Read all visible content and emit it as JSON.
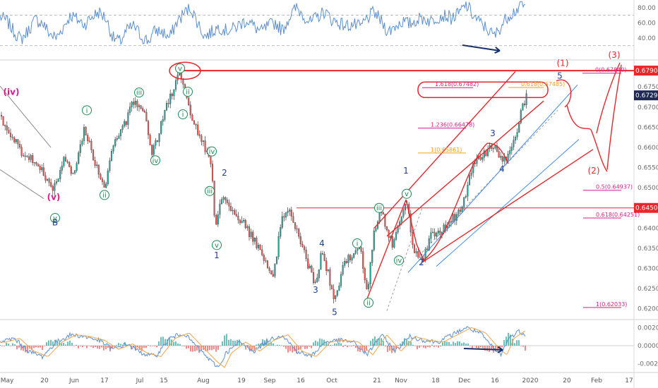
{
  "chart_data": {
    "type": "line",
    "colors": {
      "candle_up": "#26a69a",
      "candle_down": "#ef5350",
      "price_line": "#333333",
      "rsi": "#5b8fd1",
      "macd": "#5b8fd1",
      "signal": "#f0a44a",
      "annot_red": "#e8262b",
      "channel_blue": "#3f8ae8",
      "fib_magenta": "#d81b8f",
      "fib_orange": "#f39c12",
      "wave_green": "#1e8a55",
      "wave_navy": "#1c3f94",
      "arrow_navy": "#17326b",
      "pivot_box": "#1e2a55"
    },
    "x_axis": {
      "date_labels": [
        "May",
        "20",
        "Jun",
        "17",
        "Jul",
        "15",
        "Aug",
        "19",
        "Sep",
        "16",
        "Oct",
        "21",
        "Nov",
        "18",
        "Dec",
        "16",
        "2020",
        "20",
        "Feb",
        "17"
      ]
    },
    "price_axis": {
      "ticks": [
        "0.67500",
        "0.67000",
        "0.66500",
        "0.66000",
        "0.65500",
        "0.65000",
        "0.64000",
        "0.63500",
        "0.63000",
        "0.62500",
        "0.62000"
      ],
      "ylim": [
        0.6175,
        0.6815
      ],
      "highlights": [
        {
          "value": 0.67904,
          "label": "0.67904",
          "kind": "red"
        },
        {
          "value": 0.6729,
          "label": "0.67290",
          "kind": "navy"
        },
        {
          "value": 0.645,
          "label": "0.64500",
          "kind": "red"
        }
      ]
    },
    "rsi_panel": {
      "ticks": [
        "80.00",
        "60.00",
        "40.00"
      ],
      "ylim": [
        12,
        90
      ],
      "levels": [
        70,
        30
      ],
      "anchors": [
        [
          0,
          68
        ],
        [
          10,
          62
        ],
        [
          20,
          48
        ],
        [
          30,
          38
        ],
        [
          40,
          50
        ],
        [
          50,
          64
        ],
        [
          60,
          60
        ],
        [
          70,
          46
        ],
        [
          80,
          40
        ],
        [
          90,
          55
        ],
        [
          100,
          70
        ],
        [
          110,
          64
        ],
        [
          120,
          58
        ],
        [
          130,
          68
        ],
        [
          140,
          74
        ],
        [
          150,
          66
        ],
        [
          160,
          40
        ],
        [
          170,
          35
        ],
        [
          180,
          50
        ],
        [
          190,
          56
        ],
        [
          200,
          42
        ],
        [
          210,
          36
        ],
        [
          220,
          50
        ],
        [
          230,
          48
        ],
        [
          240,
          40
        ],
        [
          250,
          60
        ],
        [
          260,
          72
        ],
        [
          270,
          80
        ],
        [
          280,
          60
        ],
        [
          290,
          42
        ],
        [
          300,
          48
        ],
        [
          310,
          55
        ],
        [
          320,
          50
        ],
        [
          330,
          52
        ],
        [
          340,
          58
        ],
        [
          350,
          64
        ],
        [
          360,
          55
        ],
        [
          370,
          48
        ],
        [
          380,
          56
        ],
        [
          390,
          60
        ],
        [
          400,
          50
        ],
        [
          410,
          68
        ],
        [
          420,
          80
        ],
        [
          430,
          70
        ],
        [
          440,
          60
        ],
        [
          450,
          68
        ],
        [
          460,
          75
        ],
        [
          470,
          64
        ],
        [
          480,
          60
        ],
        [
          490,
          56
        ],
        [
          500,
          58
        ],
        [
          510,
          54
        ],
        [
          520,
          66
        ],
        [
          530,
          74
        ],
        [
          540,
          62
        ],
        [
          550,
          48
        ],
        [
          560,
          56
        ],
        [
          570,
          62
        ],
        [
          580,
          58
        ],
        [
          590,
          64
        ],
        [
          600,
          66
        ],
        [
          610,
          62
        ],
        [
          620,
          68
        ],
        [
          630,
          70
        ],
        [
          640,
          66
        ],
        [
          650,
          72
        ],
        [
          660,
          84
        ],
        [
          670,
          70
        ],
        [
          680,
          60
        ],
        [
          690,
          52
        ],
        [
          700,
          42
        ],
        [
          710,
          56
        ],
        [
          720,
          70
        ],
        [
          730,
          76
        ],
        [
          740,
          84
        ],
        [
          745,
          80
        ]
      ]
    },
    "macd_panel": {
      "ticks": [
        "0.00200",
        "0.00000",
        "-0.00200"
      ],
      "ylim": [
        -0.0028,
        0.0028
      ],
      "anchors": [
        [
          0,
          0.0004
        ],
        [
          20,
          0.0008
        ],
        [
          40,
          -0.0006
        ],
        [
          60,
          -0.0012
        ],
        [
          80,
          0.0004
        ],
        [
          100,
          0.0012
        ],
        [
          120,
          0.001
        ],
        [
          140,
          0.0006
        ],
        [
          160,
          -0.0004
        ],
        [
          180,
          0.0002
        ],
        [
          200,
          -0.0008
        ],
        [
          220,
          -0.0012
        ],
        [
          240,
          0.0008
        ],
        [
          260,
          0.0014
        ],
        [
          280,
          -0.0002
        ],
        [
          300,
          -0.0018
        ],
        [
          310,
          -0.0024
        ],
        [
          320,
          -0.0008
        ],
        [
          340,
          0.0004
        ],
        [
          360,
          -0.0006
        ],
        [
          380,
          0.0006
        ],
        [
          400,
          0.0012
        ],
        [
          420,
          -0.0006
        ],
        [
          440,
          -0.0012
        ],
        [
          460,
          0.0004
        ],
        [
          480,
          0.0006
        ],
        [
          500,
          0.0004
        ],
        [
          520,
          -0.001
        ],
        [
          540,
          0.0012
        ],
        [
          560,
          -0.0006
        ],
        [
          580,
          0.001
        ],
        [
          600,
          0.0006
        ],
        [
          620,
          0.0004
        ],
        [
          640,
          0.0012
        ],
        [
          660,
          0.002
        ],
        [
          680,
          0.0014
        ],
        [
          700,
          -0.0004
        ],
        [
          710,
          -0.001
        ],
        [
          720,
          0.0008
        ],
        [
          735,
          0.0016
        ],
        [
          745,
          0.0012
        ]
      ]
    },
    "price_path": [
      [
        0,
        0.668
      ],
      [
        15,
        0.663
      ],
      [
        30,
        0.659
      ],
      [
        45,
        0.6575
      ],
      [
        60,
        0.654
      ],
      [
        75,
        0.6492
      ],
      [
        90,
        0.657
      ],
      [
        105,
        0.6535
      ],
      [
        120,
        0.665
      ],
      [
        135,
        0.656
      ],
      [
        148,
        0.6502
      ],
      [
        160,
        0.66
      ],
      [
        175,
        0.665
      ],
      [
        190,
        0.6718
      ],
      [
        205,
        0.668
      ],
      [
        215,
        0.659
      ],
      [
        222,
        0.6615
      ],
      [
        235,
        0.67
      ],
      [
        245,
        0.674
      ],
      [
        255,
        0.679
      ],
      [
        265,
        0.672
      ],
      [
        275,
        0.666
      ],
      [
        285,
        0.662
      ],
      [
        295,
        0.658
      ],
      [
        300,
        0.6545
      ],
      [
        305,
        0.6395
      ],
      [
        315,
        0.648
      ],
      [
        330,
        0.644
      ],
      [
        345,
        0.641
      ],
      [
        360,
        0.637
      ],
      [
        375,
        0.632
      ],
      [
        388,
        0.6285
      ],
      [
        398,
        0.642
      ],
      [
        410,
        0.644
      ],
      [
        420,
        0.639
      ],
      [
        430,
        0.6345
      ],
      [
        446,
        0.6255
      ],
      [
        456,
        0.6342
      ],
      [
        466,
        0.628
      ],
      [
        474,
        0.6215
      ],
      [
        485,
        0.63
      ],
      [
        500,
        0.634
      ],
      [
        510,
        0.6355
      ],
      [
        520,
        0.6235
      ],
      [
        530,
        0.6395
      ],
      [
        540,
        0.644
      ],
      [
        548,
        0.64
      ],
      [
        556,
        0.636
      ],
      [
        566,
        0.641
      ],
      [
        576,
        0.646
      ],
      [
        586,
        0.635
      ],
      [
        598,
        0.632
      ],
      [
        610,
        0.638
      ],
      [
        625,
        0.6395
      ],
      [
        640,
        0.642
      ],
      [
        655,
        0.6455
      ],
      [
        670,
        0.656
      ],
      [
        685,
        0.658
      ],
      [
        698,
        0.6612
      ],
      [
        710,
        0.6565
      ],
      [
        720,
        0.658
      ],
      [
        730,
        0.662
      ],
      [
        740,
        0.67
      ],
      [
        746,
        0.6729
      ]
    ],
    "wave_labels_green": [
      {
        "t": "y",
        "x": 78,
        "y": 0.6425
      },
      {
        "t": "i",
        "x": 123,
        "y": 0.6692
      },
      {
        "t": "ii",
        "x": 148,
        "y": 0.6482
      },
      {
        "t": "iii",
        "x": 197,
        "y": 0.6736
      },
      {
        "t": "iv",
        "x": 220,
        "y": 0.6568
      },
      {
        "t": "v",
        "x": 255,
        "y": 0.6796
      },
      {
        "t": "ii",
        "x": 266,
        "y": 0.6738
      },
      {
        "t": "i",
        "x": 259,
        "y": 0.6682
      },
      {
        "t": "iv",
        "x": 300,
        "y": 0.659
      },
      {
        "t": "iii",
        "x": 297,
        "y": 0.6492
      },
      {
        "t": "v",
        "x": 307,
        "y": 0.6358
      },
      {
        "t": "i",
        "x": 506,
        "y": 0.6362
      },
      {
        "t": "ii",
        "x": 522,
        "y": 0.6215
      },
      {
        "t": "iii",
        "x": 537,
        "y": 0.645
      },
      {
        "t": "iv",
        "x": 565,
        "y": 0.632
      },
      {
        "t": "v",
        "x": 576,
        "y": 0.6485
      }
    ],
    "wave_labels_navy": [
      {
        "t": "B",
        "x": 78,
        "y": 0.6407
      },
      {
        "t": "2",
        "x": 318,
        "y": 0.653
      },
      {
        "t": "1",
        "x": 307,
        "y": 0.6325
      },
      {
        "t": "4",
        "x": 456,
        "y": 0.6355
      },
      {
        "t": "3",
        "x": 447,
        "y": 0.624
      },
      {
        "t": "5",
        "x": 474,
        "y": 0.6185
      },
      {
        "t": "1",
        "x": 575,
        "y": 0.6535
      },
      {
        "t": "2",
        "x": 597,
        "y": 0.6308
      },
      {
        "t": "3",
        "x": 698,
        "y": 0.6628
      },
      {
        "t": "4",
        "x": 711,
        "y": 0.654
      },
      {
        "t": "5",
        "x": 793,
        "y": 0.677
      }
    ],
    "wave_labels_magenta": [
      {
        "t": "(iv)",
        "x": 16,
        "y": 0.673
      },
      {
        "t": "(v)",
        "x": 76,
        "y": 0.647
      }
    ],
    "wave_labels_red": [
      {
        "t": "(1)",
        "x": 797,
        "y": 0.6802
      },
      {
        "t": "(2)",
        "x": 841,
        "y": 0.6535
      },
      {
        "t": "(3)",
        "x": 870,
        "y": 0.6822
      }
    ],
    "fib_levels": [
      {
        "label": "0(0.67840)",
        "value": 0.6784,
        "color": "magenta",
        "x1": 825,
        "x2": 880
      },
      {
        "label": "1.618(0.67482)",
        "value": 0.67482,
        "color": "magenta",
        "x1": 598,
        "x2": 670
      },
      {
        "label": "0.618(0.67485)",
        "value": 0.67485,
        "color": "orange",
        "x1": 720,
        "x2": 770
      },
      {
        "label": "1.236(0.66478)",
        "value": 0.66478,
        "color": "magenta",
        "x1": 592,
        "x2": 660
      },
      {
        "label": "1(0.65861)",
        "value": 0.65861,
        "color": "orange",
        "x1": 592,
        "x2": 660
      },
      {
        "label": "0.5(0.64937)",
        "value": 0.64937,
        "color": "magenta",
        "x1": 826,
        "x2": 880
      },
      {
        "label": "0.618(0.64251)",
        "value": 0.64251,
        "color": "magenta",
        "x1": 826,
        "x2": 880
      },
      {
        "label": "1(0.62033)",
        "value": 0.62033,
        "color": "magenta",
        "x1": 826,
        "x2": 880
      }
    ]
  }
}
